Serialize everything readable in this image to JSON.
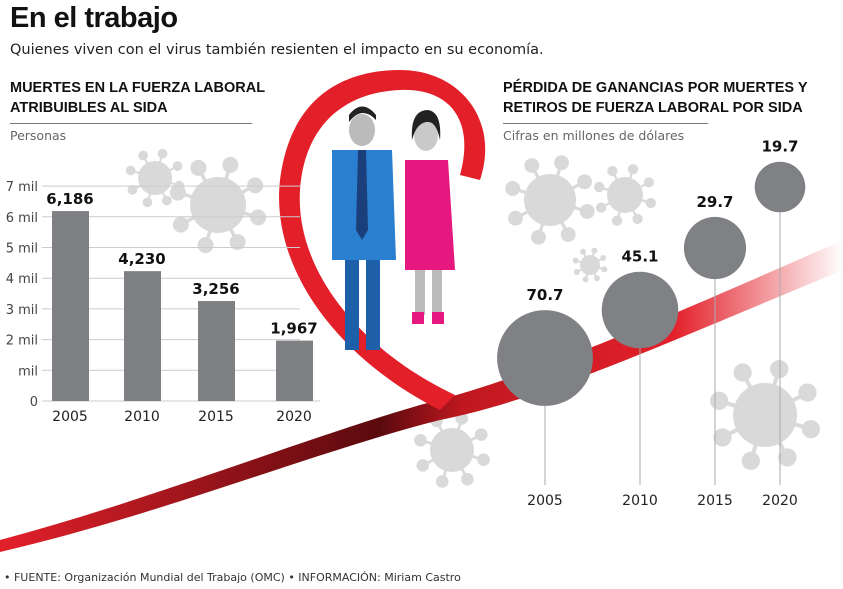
{
  "title": "En el trabajo",
  "subtitle": "Quienes viven con el virus también resienten el impacto en su economía.",
  "footer": "• FUENTE: Organización Mundial del Trabajo (OMC) • INFORMACIÓN: Miriam Castro",
  "colors": {
    "bar": "#7f8083",
    "bubble": "#808184",
    "ribbon": "#e3202a",
    "suit": "#2a7fd0",
    "dress": "#e6177f",
    "virus": "#d9d9d9"
  },
  "chart_data": [
    {
      "type": "bar",
      "title": "MUERTES EN LA FUERZA LABORAL ATRIBUIBLES AL SIDA",
      "ylabel": "Personas",
      "categories": [
        "2005",
        "2010",
        "2015",
        "2020"
      ],
      "values": [
        6186,
        4230,
        3256,
        1967
      ],
      "data_labels": [
        "6,186",
        "4,230",
        "3,256",
        "1,967"
      ],
      "ylim": [
        0,
        7000
      ],
      "yticks": [
        0,
        1000,
        2000,
        3000,
        4000,
        5000,
        6000,
        7000
      ],
      "ytick_labels": [
        "0",
        "mil",
        "2 mil",
        "3 mil",
        "4 mil",
        "5 mil",
        "6 mil",
        "7 mil"
      ],
      "grid": true
    },
    {
      "type": "scatter",
      "title": "PÉRDIDA DE GANANCIAS POR MUERTES Y RETIROS DE FUERZA LABORAL POR SIDA",
      "ylabel": "Cifras en millones de dólares",
      "categories": [
        "2005",
        "2010",
        "2015",
        "2020"
      ],
      "values": [
        70.7,
        45.1,
        29.7,
        19.7
      ],
      "data_labels": [
        "70.7",
        "45.1",
        "29.7",
        "19.7"
      ],
      "encoding": "bubble area"
    }
  ]
}
